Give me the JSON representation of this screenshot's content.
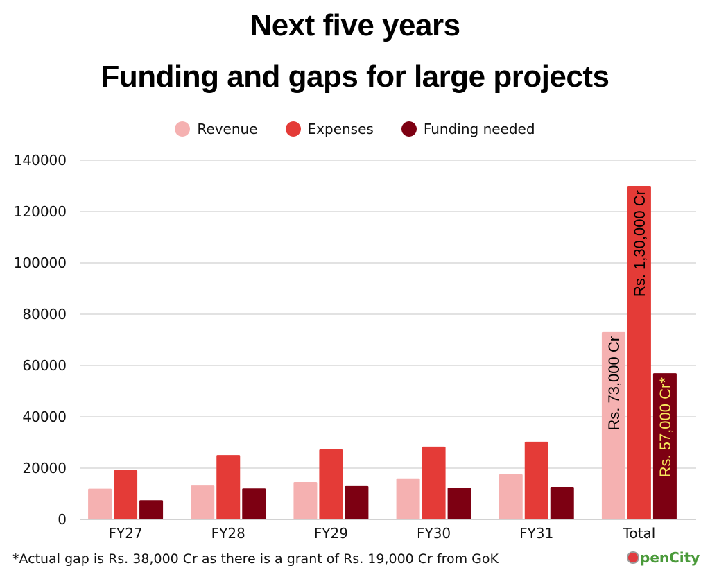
{
  "title_line1": "Next five years",
  "title_line2": "Funding and gaps for large projects",
  "footnote": "*Actual gap is Rs. 38,000 Cr as there is a grant of Rs. 19,000 Cr from GoK",
  "logo": {
    "text": "penCity",
    "icon": "opencity-logo-icon"
  },
  "chart_data": {
    "type": "bar",
    "title": "Next five years — Funding and gaps for large projects",
    "xlabel": "",
    "ylabel": "",
    "ylim": [
      0,
      140000
    ],
    "yticks": [
      0,
      20000,
      40000,
      60000,
      80000,
      100000,
      120000,
      140000
    ],
    "ytick_labels": [
      "0",
      "20000",
      "40000",
      "60000",
      "80000",
      "100000",
      "120000",
      "140000"
    ],
    "grid": true,
    "legend_position": "top-center",
    "categories": [
      "FY27",
      "FY28",
      "FY29",
      "FY30",
      "FY31",
      "Total"
    ],
    "series": [
      {
        "name": "Revenue",
        "color": "#f5b1b1",
        "values": [
          12000,
          13200,
          14600,
          16000,
          17600,
          73000
        ]
      },
      {
        "name": "Expenses",
        "color": "#e43b37",
        "values": [
          19200,
          25100,
          27300,
          28400,
          30300,
          130000
        ]
      },
      {
        "name": "Funding needed",
        "color": "#7d0012",
        "values": [
          7500,
          12100,
          13000,
          12400,
          12700,
          57000
        ]
      }
    ],
    "annotations": [
      {
        "category": "Total",
        "series": "Revenue",
        "text": "Rs. 73,000 Cr",
        "color": "#000000"
      },
      {
        "category": "Total",
        "series": "Expenses",
        "text": "Rs. 1,30,000 Cr",
        "color": "#000000"
      },
      {
        "category": "Total",
        "series": "Funding needed",
        "text": "Rs. 57,000 Cr*",
        "color": "#f7e85c"
      }
    ]
  }
}
